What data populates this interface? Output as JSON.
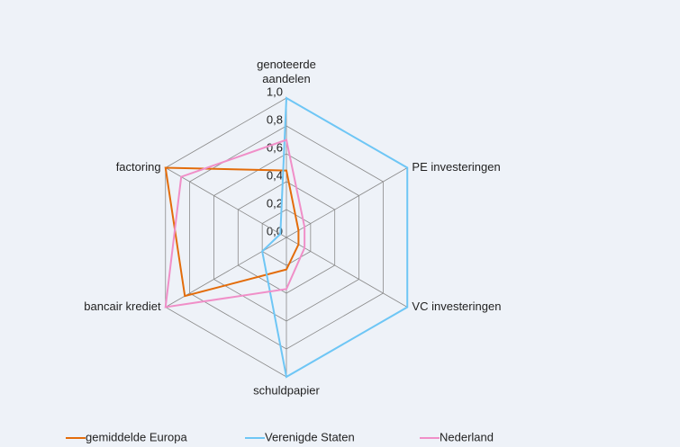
{
  "chart_data": {
    "type": "radar",
    "categories": [
      "genoteerde aandelen",
      "PE investeringen",
      "VC investeringen",
      "schuldpapier",
      "bancair krediet",
      "factoring"
    ],
    "rlim": [
      0,
      1
    ],
    "rticks": [
      {
        "value": 0,
        "label": "0,0"
      },
      {
        "value": 0.2,
        "label": "0,2"
      },
      {
        "value": 0.4,
        "label": "0,4"
      },
      {
        "value": 0.6,
        "label": "0,6"
      },
      {
        "value": 0.8,
        "label": "0,8"
      },
      {
        "value": 1,
        "label": "1,0"
      }
    ],
    "grid": true,
    "legend": "bottom",
    "series": [
      {
        "name": "gemiddelde Europa",
        "color": "#e36c0a",
        "values": [
          0.48,
          0.1,
          0.1,
          0.23,
          0.84,
          1.0
        ]
      },
      {
        "name": "Verenigde Staten",
        "color": "#6ec6f5",
        "values": [
          1.0,
          1.0,
          1.0,
          1.0,
          0.2,
          0.05
        ]
      },
      {
        "name": "Nederland",
        "color": "#f08fc8",
        "values": [
          0.7,
          0.15,
          0.15,
          0.37,
          1.0,
          0.87
        ]
      }
    ]
  }
}
